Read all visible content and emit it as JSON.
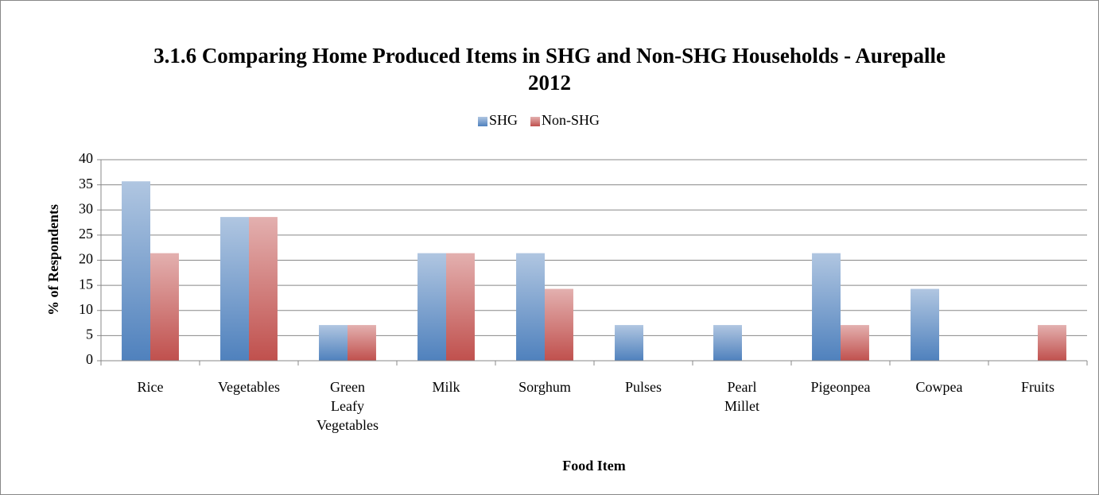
{
  "chart_data": {
    "type": "bar",
    "title": "3.1.6 Comparing Home Produced Items in SHG and Non-SHG Households - Aurepalle 2012",
    "x_label": "Food Item",
    "y_label": "% of Respondents",
    "categories": [
      "Rice",
      "Vegetables",
      "Green Leafy Vegetables",
      "Milk",
      "Sorghum",
      "Pulses",
      "Pearl Millet",
      "Pigeonpea",
      "Cowpea",
      "Fruits"
    ],
    "series": [
      {
        "name": "SHG",
        "color": "#4f81bd",
        "values": [
          35.7,
          28.6,
          7.1,
          21.4,
          21.4,
          7.1,
          7.1,
          21.4,
          14.3,
          0
        ]
      },
      {
        "name": "Non-SHG",
        "color": "#c0504d",
        "values": [
          21.4,
          28.6,
          7.1,
          21.4,
          14.3,
          0,
          0,
          7.1,
          0,
          7.1
        ]
      }
    ],
    "ylim": [
      0,
      40
    ],
    "yticks": [
      0,
      5,
      10,
      15,
      20,
      25,
      30,
      35,
      40
    ],
    "grid": true,
    "legend": "top"
  }
}
